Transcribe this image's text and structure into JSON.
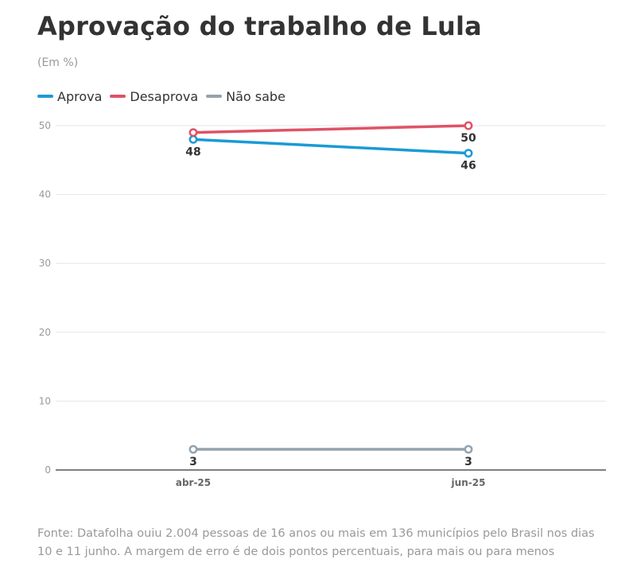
{
  "header": {
    "title": "Aprovação do trabalho de Lula",
    "subtitle": "(Em %)"
  },
  "footer": {
    "line1": "Fonte: Datafolha ouiu 2.004 pessoas de 16 anos ou mais em 136 municípios pelo Brasil nos dias",
    "line2": "10 e 11 junho. A margem de erro é de dois pontos percentuais, para mais ou para menos"
  },
  "chart_data": {
    "type": "line",
    "title": "Aprovação do trabalho de Lula",
    "subtitle": "(Em %)",
    "categories": [
      "abr-25",
      "jun-25"
    ],
    "series": [
      {
        "name": "Aprova",
        "values": [
          48,
          46
        ],
        "color": "#1a9ad6"
      },
      {
        "name": "Desaprova",
        "values": [
          49,
          50
        ],
        "color": "#e05266",
        "labels": [
          "",
          "50"
        ]
      },
      {
        "name": "Não sabe",
        "values": [
          3,
          3
        ],
        "color": "#93a3af"
      }
    ],
    "ylim": [
      0,
      50
    ],
    "yticks": [
      0,
      10,
      20,
      30,
      40,
      50
    ],
    "grid": true,
    "legend": "top-left"
  }
}
